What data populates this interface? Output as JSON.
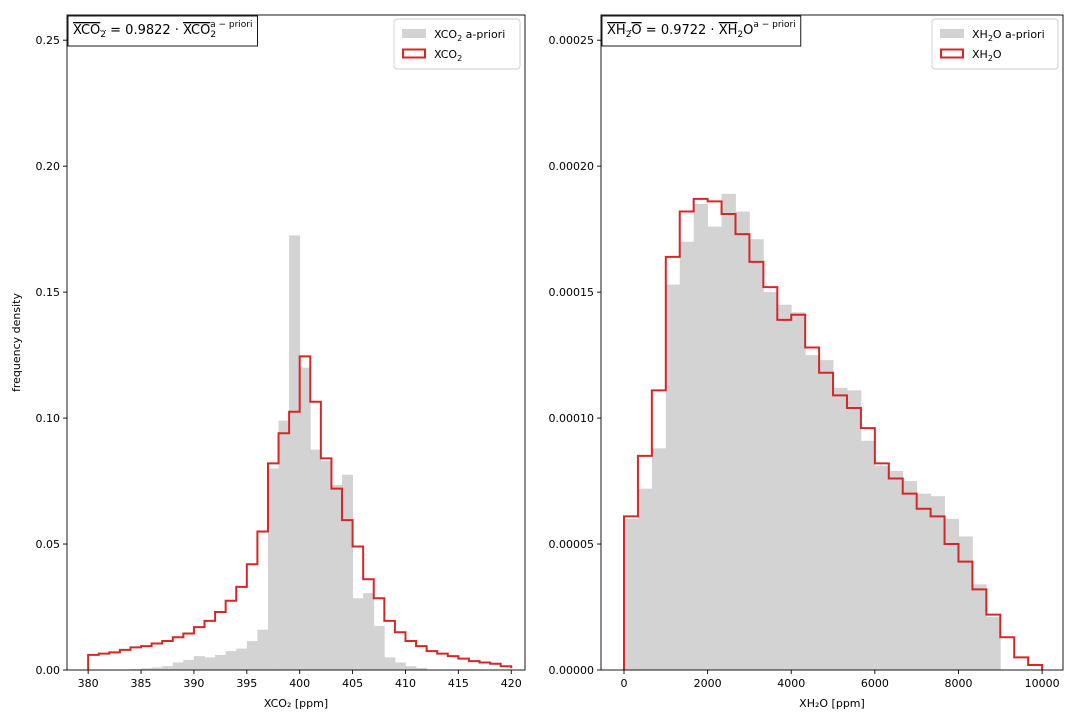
{
  "chart_data": [
    {
      "type": "histogram",
      "xlabel": "XCO₂ [ppm]",
      "ylabel": "frequency density",
      "xlim": [
        378,
        421.3
      ],
      "ylim": [
        0,
        0.26
      ],
      "xticks": [
        380,
        385,
        390,
        395,
        400,
        405,
        410,
        415,
        420
      ],
      "xtick_labels": [
        "380",
        "385",
        "390",
        "395",
        "400",
        "405",
        "410",
        "415",
        "420"
      ],
      "yticks": [
        0,
        0.05,
        0.1,
        0.15,
        0.2,
        0.25
      ],
      "ytick_labels": [
        "0.00",
        "0.05",
        "0.10",
        "0.15",
        "0.20",
        "0.25"
      ],
      "annotation": "XCO₂ = 0.9822 · XCO₂ a−priori",
      "annotation_parts": {
        "lhs": "XCO",
        "lhs_sub": "2",
        "eq": " = 0.9822 · ",
        "rhs": "XCO",
        "rhs_sub": "2",
        "rhs_sup": "a − priori"
      },
      "legend_position": "top-right",
      "legend": [
        {
          "name": "XCO",
          "sub": "2",
          "suffix": " a-priori",
          "style": "filled",
          "color": "#d3d3d3"
        },
        {
          "name": "XCO",
          "sub": "2",
          "suffix": "",
          "style": "step",
          "color": "#d62728"
        }
      ],
      "series": [
        {
          "name": "XCO₂ a-priori",
          "style": "filled",
          "color": "#d3d3d3",
          "bin_edges": [
            384,
            385,
            386,
            387,
            388,
            389,
            390,
            391,
            392,
            393,
            394,
            395,
            396,
            397,
            398,
            399,
            400,
            401,
            402,
            403,
            404,
            405,
            406,
            407,
            408,
            409,
            410,
            411,
            412
          ],
          "values": [
            0.0003,
            0.0007,
            0.001,
            0.0015,
            0.003,
            0.004,
            0.0055,
            0.005,
            0.006,
            0.0075,
            0.0085,
            0.0115,
            0.016,
            0.08,
            0.099,
            0.1725,
            0.12,
            0.0875,
            0.083,
            0.0735,
            0.0775,
            0.0285,
            0.0305,
            0.0175,
            0.005,
            0.003,
            0.0015,
            0.0008
          ]
        },
        {
          "name": "XCO₂",
          "style": "step",
          "color": "#d62728",
          "bin_edges": [
            380,
            381,
            382,
            383,
            384,
            385,
            386,
            387,
            388,
            389,
            390,
            391,
            392,
            393,
            394,
            395,
            396,
            397,
            398,
            399,
            400,
            401,
            402,
            403,
            404,
            405,
            406,
            407,
            408,
            409,
            410,
            411,
            412,
            413,
            414,
            415,
            416,
            417,
            418,
            419,
            420
          ],
          "values": [
            0.006,
            0.0065,
            0.007,
            0.008,
            0.009,
            0.0095,
            0.0105,
            0.0115,
            0.013,
            0.0145,
            0.017,
            0.0195,
            0.023,
            0.0275,
            0.033,
            0.042,
            0.055,
            0.082,
            0.094,
            0.1025,
            0.1245,
            0.1065,
            0.084,
            0.072,
            0.0595,
            0.049,
            0.036,
            0.0285,
            0.0195,
            0.015,
            0.0115,
            0.0095,
            0.0075,
            0.0065,
            0.0055,
            0.0045,
            0.0035,
            0.003,
            0.0025,
            0.0015,
            0.0007
          ]
        }
      ]
    },
    {
      "type": "histogram",
      "xlabel": "XH₂O [ppm]",
      "ylabel": "",
      "xlim": [
        -550,
        10500
      ],
      "ylim": [
        0,
        0.00026
      ],
      "xticks": [
        0,
        2000,
        4000,
        6000,
        8000,
        10000
      ],
      "xtick_labels": [
        "0",
        "2000",
        "4000",
        "6000",
        "8000",
        "10000"
      ],
      "yticks": [
        0,
        5e-05,
        0.0001,
        0.00015,
        0.0002,
        0.00025
      ],
      "ytick_labels": [
        "0.00000",
        "0.00005",
        "0.00010",
        "0.00015",
        "0.00020",
        "0.00025"
      ],
      "annotation": "XH₂O = 0.9722 · XH₂O a−priori",
      "annotation_parts": {
        "lhs": "XH",
        "lhs_sub": "2",
        "lhs_tail": "O",
        "eq": " = 0.9722 · ",
        "rhs": "XH",
        "rhs_sub": "2",
        "rhs_tail": "O",
        "rhs_sup": "a − priori"
      },
      "legend_position": "top-right",
      "legend": [
        {
          "name": "XH",
          "sub": "2",
          "suffix": "O a-priori",
          "style": "filled",
          "color": "#d3d3d3"
        },
        {
          "name": "XH",
          "sub": "2",
          "suffix": "O",
          "style": "step",
          "color": "#d62728"
        }
      ],
      "series": [
        {
          "name": "XH₂O a-priori",
          "style": "filled",
          "color": "#d3d3d3",
          "bin_edges": [
            0,
            333.3,
            666.7,
            1000,
            1333.3,
            1666.7,
            2000,
            2333.3,
            2666.7,
            3000,
            3333.3,
            3666.7,
            4000,
            4333.3,
            4666.7,
            5000,
            5333.3,
            5666.7,
            6000,
            6333.3,
            6666.7,
            7000,
            7333.3,
            7666.7,
            8000,
            8333.3,
            8666.7,
            9000
          ],
          "values": [
            6e-05,
            7.2e-05,
            8.8e-05,
            0.000153,
            0.00017,
            0.000185,
            0.000176,
            0.000189,
            0.000182,
            0.000171,
            0.00015,
            0.000145,
            0.000142,
            0.000125,
            0.000123,
            0.000112,
            0.000111,
            9.1e-05,
            8.1e-05,
            7.9e-05,
            7.5e-05,
            7e-05,
            6.9e-05,
            6e-05,
            5.3e-05,
            3.4e-05,
            2.1e-05
          ]
        },
        {
          "name": "XH₂O",
          "style": "step",
          "color": "#d62728",
          "bin_edges": [
            0,
            333.3,
            666.7,
            1000,
            1333.3,
            1666.7,
            2000,
            2333.3,
            2666.7,
            3000,
            3333.3,
            3666.7,
            4000,
            4333.3,
            4666.7,
            5000,
            5333.3,
            5666.7,
            6000,
            6333.3,
            6666.7,
            7000,
            7333.3,
            7666.7,
            8000,
            8333.3,
            8666.7,
            9000,
            9333.3,
            9666.7,
            10000
          ],
          "values": [
            6.1e-05,
            8.5e-05,
            0.000111,
            0.000164,
            0.000182,
            0.000187,
            0.000186,
            0.000181,
            0.000173,
            0.000162,
            0.000152,
            0.000139,
            0.000141,
            0.000128,
            0.000118,
            0.000109,
            0.000104,
            9.6e-05,
            8.2e-05,
            7.6e-05,
            7e-05,
            6.4e-05,
            6.1e-05,
            5e-05,
            4.3e-05,
            3.2e-05,
            2.2e-05,
            1.3e-05,
            5e-06,
            2e-06
          ]
        }
      ]
    }
  ]
}
